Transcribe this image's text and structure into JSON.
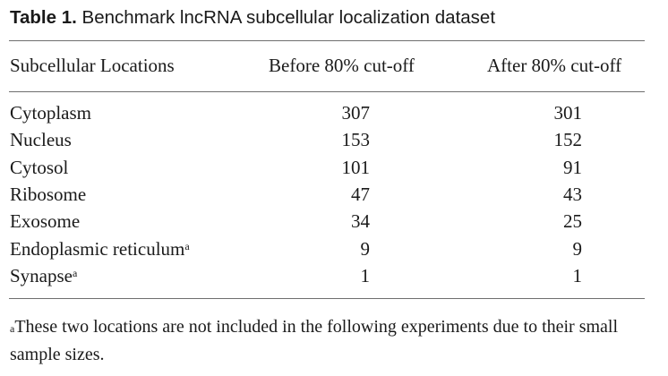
{
  "table": {
    "caption_label": "Table 1.",
    "caption_text": "Benchmark lncRNA subcellular localization dataset",
    "headers": {
      "location": "Subcellular Locations",
      "before": "Before 80% cut-off",
      "after": "After 80% cut-off"
    },
    "rows": [
      {
        "location": "Cytoplasm",
        "mark": "",
        "before": "307",
        "after": "301"
      },
      {
        "location": "Nucleus",
        "mark": "",
        "before": "153",
        "after": "152"
      },
      {
        "location": "Cytosol",
        "mark": "",
        "before": "101",
        "after": "91"
      },
      {
        "location": "Ribosome",
        "mark": "",
        "before": "47",
        "after": "43"
      },
      {
        "location": "Exosome",
        "mark": "",
        "before": "34",
        "after": "25"
      },
      {
        "location": "Endoplasmic reticulum",
        "mark": "a",
        "before": "9",
        "after": "9"
      },
      {
        "location": "Synapse",
        "mark": "a",
        "before": "1",
        "after": "1"
      }
    ],
    "footnote_mark": "a",
    "footnote_text": "These two locations are not included in the following experiments due to their small sample sizes."
  }
}
